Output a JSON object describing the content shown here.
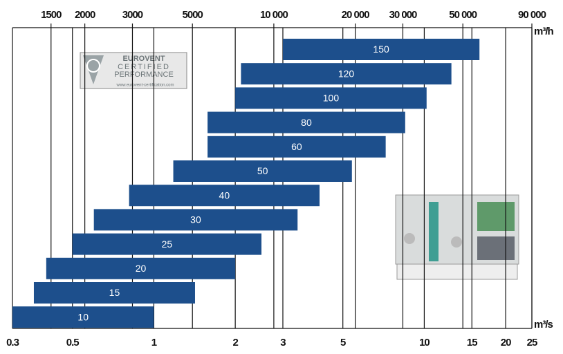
{
  "chart_data": {
    "type": "floating-bar",
    "categories": [
      "150",
      "120",
      "100",
      "80",
      "60",
      "50",
      "40",
      "30",
      "25",
      "20",
      "15",
      "10"
    ],
    "ranges": [
      [
        3,
        16
      ],
      [
        2.1,
        12.6
      ],
      [
        2,
        10.2
      ],
      [
        1.58,
        8.5
      ],
      [
        1.58,
        7.2
      ],
      [
        1.18,
        5.4
      ],
      [
        0.81,
        4.1
      ],
      [
        0.6,
        3.4
      ],
      [
        0.5,
        2.5
      ],
      [
        0.4,
        2
      ],
      [
        0.36,
        1.42
      ],
      [
        0.3,
        1
      ]
    ],
    "color": "#1d4f8c",
    "x_log": true,
    "xlim": [
      0.3,
      25
    ],
    "xticks": [
      0.3,
      0.5,
      1,
      2,
      3,
      5,
      10,
      15,
      20,
      25
    ],
    "x_unit": "m³/s",
    "x2lim": [
      1080,
      90000
    ],
    "x2ticks": [
      1500,
      2000,
      3000,
      5000,
      {
        "value": 10000,
        "label": "10 000"
      },
      {
        "value": 20000,
        "label": "20 000"
      },
      {
        "value": 30000,
        "label": "30 000"
      },
      {
        "value": 50000,
        "label": "50 000"
      },
      {
        "value": 90000,
        "label": "90 000"
      }
    ],
    "x2_unit": "m³/h",
    "grid": true
  },
  "logo": {
    "brand": "EUROVENT",
    "line1": "CERTIFIED",
    "line2": "PERFORMANCE",
    "url": "www.eurovent-certification.com"
  }
}
